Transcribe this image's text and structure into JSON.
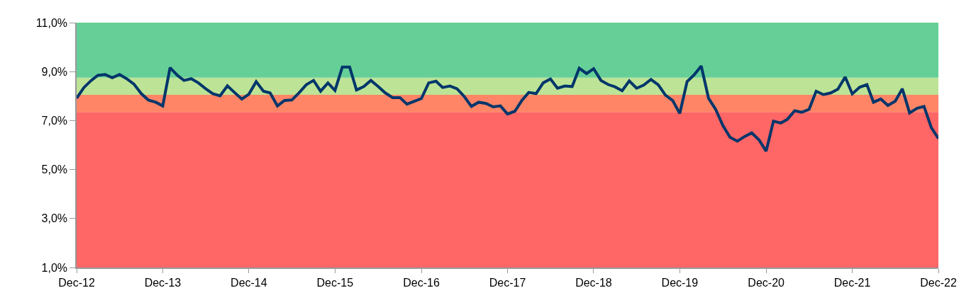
{
  "chart_data": {
    "type": "line",
    "x": [
      "2012-12",
      "2013-01",
      "2013-02",
      "2013-03",
      "2013-04",
      "2013-05",
      "2013-06",
      "2013-07",
      "2013-08",
      "2013-09",
      "2013-10",
      "2013-11",
      "2013-12",
      "2014-01",
      "2014-02",
      "2014-03",
      "2014-04",
      "2014-05",
      "2014-06",
      "2014-07",
      "2014-08",
      "2014-09",
      "2014-10",
      "2014-11",
      "2014-12",
      "2015-01",
      "2015-02",
      "2015-03",
      "2015-04",
      "2015-05",
      "2015-06",
      "2015-07",
      "2015-08",
      "2015-09",
      "2015-10",
      "2015-11",
      "2015-12",
      "2016-01",
      "2016-02",
      "2016-03",
      "2016-04",
      "2016-05",
      "2016-06",
      "2016-07",
      "2016-08",
      "2016-09",
      "2016-10",
      "2016-11",
      "2016-12",
      "2017-01",
      "2017-02",
      "2017-03",
      "2017-04",
      "2017-05",
      "2017-06",
      "2017-07",
      "2017-08",
      "2017-09",
      "2017-10",
      "2017-11",
      "2017-12",
      "2018-01",
      "2018-02",
      "2018-03",
      "2018-04",
      "2018-05",
      "2018-06",
      "2018-07",
      "2018-08",
      "2018-09",
      "2018-10",
      "2018-11",
      "2018-12",
      "2019-01",
      "2019-02",
      "2019-03",
      "2019-04",
      "2019-05",
      "2019-06",
      "2019-07",
      "2019-08",
      "2019-09",
      "2019-10",
      "2019-11",
      "2019-12",
      "2020-01",
      "2020-02",
      "2020-03",
      "2020-04",
      "2020-05",
      "2020-06",
      "2020-07",
      "2020-08",
      "2020-09",
      "2020-10",
      "2020-11",
      "2020-12",
      "2021-01",
      "2021-02",
      "2021-03",
      "2021-04",
      "2021-05",
      "2021-06",
      "2021-07",
      "2021-08",
      "2021-09",
      "2021-10",
      "2021-11",
      "2021-12",
      "2022-01",
      "2022-02",
      "2022-03",
      "2022-04",
      "2022-05",
      "2022-06",
      "2022-07",
      "2022-08",
      "2022-09",
      "2022-10",
      "2022-11",
      "2022-12"
    ],
    "series": [
      {
        "color": "#00366b",
        "values": [
          7.91,
          8.35,
          8.64,
          8.85,
          8.88,
          8.75,
          8.88,
          8.71,
          8.49,
          8.1,
          7.84,
          7.75,
          7.6,
          9.16,
          8.85,
          8.64,
          8.71,
          8.54,
          8.3,
          8.1,
          8.01,
          8.42,
          8.15,
          7.88,
          8.08,
          8.59,
          8.2,
          8.13,
          7.6,
          7.82,
          7.84,
          8.13,
          8.46,
          8.64,
          8.2,
          8.54,
          8.23,
          9.19,
          9.19,
          8.25,
          8.39,
          8.64,
          8.39,
          8.13,
          7.94,
          7.94,
          7.67,
          7.79,
          7.9,
          8.54,
          8.61,
          8.35,
          8.41,
          8.3,
          7.98,
          7.58,
          7.75,
          7.7,
          7.56,
          7.6,
          7.27,
          7.38,
          7.84,
          8.15,
          8.1,
          8.54,
          8.7,
          8.32,
          8.41,
          8.39,
          9.14,
          8.92,
          9.12,
          8.64,
          8.47,
          8.38,
          8.22,
          8.62,
          8.32,
          8.45,
          8.68,
          8.46,
          8.04,
          7.82,
          7.29,
          8.59,
          8.88,
          9.23,
          7.91,
          7.46,
          6.79,
          6.32,
          6.16,
          6.35,
          6.5,
          6.21,
          5.75,
          6.98,
          6.9,
          7.05,
          7.4,
          7.34,
          7.46,
          8.2,
          8.06,
          8.13,
          8.28,
          8.78,
          8.09,
          8.36,
          8.47,
          7.75,
          7.88,
          7.62,
          7.79,
          8.3,
          7.31,
          7.5,
          7.58,
          6.71,
          6.27
        ]
      }
    ],
    "xlim": [
      "2012-12",
      "2022-12"
    ],
    "xticks": [
      {
        "value": "2012-12",
        "label": "Dec-12"
      },
      {
        "value": "2013-12",
        "label": "Dec-13"
      },
      {
        "value": "2014-12",
        "label": "Dec-14"
      },
      {
        "value": "2015-12",
        "label": "Dec-15"
      },
      {
        "value": "2016-12",
        "label": "Dec-16"
      },
      {
        "value": "2017-12",
        "label": "Dec-17"
      },
      {
        "value": "2018-12",
        "label": "Dec-18"
      },
      {
        "value": "2019-12",
        "label": "Dec-19"
      },
      {
        "value": "2020-12",
        "label": "Dec-20"
      },
      {
        "value": "2021-12",
        "label": "Dec-21"
      },
      {
        "value": "2022-12",
        "label": "Dec-22"
      }
    ],
    "ylim": [
      1,
      11
    ],
    "yticks": [
      {
        "value": 1,
        "label": "1,0%"
      },
      {
        "value": 3,
        "label": "3,0%"
      },
      {
        "value": 5,
        "label": "5,0%"
      },
      {
        "value": 7,
        "label": "7,0%"
      },
      {
        "value": 9,
        "label": "9,0%"
      },
      {
        "value": 11,
        "label": "11,0%"
      }
    ],
    "bands": [
      {
        "axis": "y",
        "from": 1,
        "to": 7.35,
        "color": "#ff6666"
      },
      {
        "axis": "y",
        "from": 7.35,
        "to": 8.05,
        "color": "#ff8566"
      },
      {
        "axis": "y",
        "from": 8.05,
        "to": 8.75,
        "color": "#bde396"
      },
      {
        "axis": "y",
        "from": 8.75,
        "to": 11,
        "color": "#66cf97"
      }
    ],
    "grid": false,
    "marker": "none",
    "line_style": "solid"
  }
}
